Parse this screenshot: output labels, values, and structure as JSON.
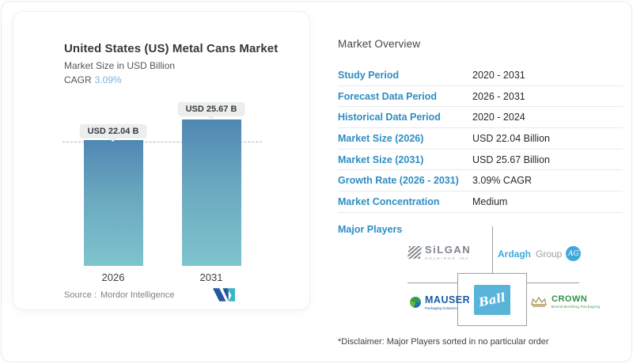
{
  "colors": {
    "bar_top": "#4f87b3",
    "bar_bottom": "#7ec4cd",
    "table_label_blue": "#2d8ec3",
    "cagr_value_blue": "#7fb0d6",
    "pill_background": "#eceeee",
    "ball_blue": "#58b4d8",
    "ardagh_blue": "#3fa9dc",
    "mauser_blue": "#1d5ba4",
    "crown_green": "#2f9149"
  },
  "chart_card": {
    "title": "United States (US) Metal Cans Market",
    "subtitle": "Market Size in USD Billion",
    "cagr_label": "CAGR",
    "cagr_value": "3.09%",
    "source_label": "Source :",
    "source_value": "Mordor Intelligence"
  },
  "chart_data": {
    "type": "bar",
    "categories": [
      "2026",
      "2031"
    ],
    "values": [
      22.04,
      25.67
    ],
    "bar_labels": [
      "USD 22.04 B",
      "USD 25.67 B"
    ],
    "title": "United States (US) Metal Cans Market",
    "ylabel": "Market Size in USD Billion",
    "ylim": [
      0,
      26
    ],
    "grid": false,
    "legend": "none",
    "reference_line": 22.04,
    "bar_gradient": [
      "#4f87b3",
      "#7ec4cd"
    ]
  },
  "overview": {
    "heading": "Market Overview",
    "rows": [
      {
        "label": "Study Period",
        "value": "2020 - 2031"
      },
      {
        "label": "Forecast Data Period",
        "value": "2026 - 2031"
      },
      {
        "label": "Historical Data Period",
        "value": "2020 - 2024"
      },
      {
        "label": "Market Size (2026)",
        "value": "USD 22.04 Billion"
      },
      {
        "label": "Market Size (2031)",
        "value": "USD 25.67 Billion"
      },
      {
        "label": "Growth Rate (2026 - 2031)",
        "value": "3.09% CAGR"
      },
      {
        "label": "Market Concentration",
        "value": "Medium"
      }
    ],
    "major_players_label": "Major Players",
    "players": {
      "silgan": {
        "name": "SiLGAN",
        "sub": "HOLDINGS INC"
      },
      "ardagh": {
        "word1": "Ardagh",
        "word2": "Group",
        "badge": "AG"
      },
      "mauser": {
        "name": "MAUSER",
        "sub": "Packaging Solutions"
      },
      "ball": {
        "name": "Ball"
      },
      "crown": {
        "name": "CROWN",
        "sub": "Brand-Building Packaging"
      }
    },
    "disclaimer": "*Disclaimer: Major Players sorted in no particular order"
  }
}
